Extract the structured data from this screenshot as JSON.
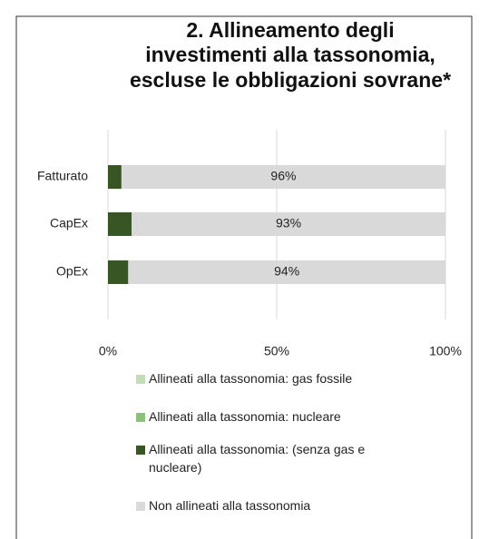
{
  "chart_data": {
    "type": "stacked-bar",
    "title_lines": [
      "2. Allineamento degli",
      "investimenti alla tassonomia,",
      "escluse le obbligazioni sovrane*"
    ],
    "categories": [
      "Fatturato",
      "CapEx",
      "OpEx"
    ],
    "series": [
      {
        "name": "Allineati alla tassonomia: gas fossile",
        "color": "#c3ddb8",
        "values": [
          0,
          0,
          0
        ]
      },
      {
        "name": "Allineati alla tassonomia: nucleare",
        "color": "#8cc17a",
        "values": [
          0,
          0,
          0
        ]
      },
      {
        "name": "Allineati alla tassonomia: (senza gas e nucleare)",
        "color": "#375623",
        "values": [
          4,
          7,
          6
        ]
      },
      {
        "name": "Non allineati alla tassonomia",
        "color": "#d9d9d9",
        "values": [
          96,
          93,
          94
        ],
        "value_labels": [
          "96%",
          "93%",
          "94%"
        ]
      }
    ],
    "xlim": [
      0,
      100
    ],
    "xticks": [
      {
        "value": 0,
        "label": "0%"
      },
      {
        "value": 50,
        "label": "50%"
      },
      {
        "value": 100,
        "label": "100%"
      }
    ],
    "grid": true,
    "orientation": "horizontal",
    "legend": "bottom"
  }
}
